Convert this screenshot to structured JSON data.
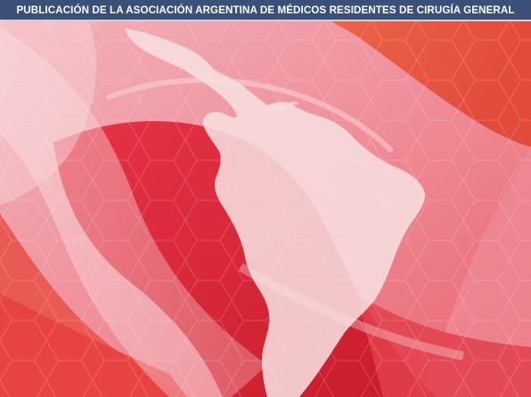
{
  "header": {
    "text": "PUBLICACIÓN DE LA ASOCIACIÓN ARGENTINA DE MÉDICOS RESIDENTES DE CIRUGÍA GENERAL"
  },
  "colors": {
    "header_bg": "#3a5078",
    "deep_red": "#d8202e",
    "coral": "#e9564a",
    "pink": "#f2a3ad",
    "light_pink": "#f6c3c8",
    "map_fill": "#f7dedf"
  }
}
